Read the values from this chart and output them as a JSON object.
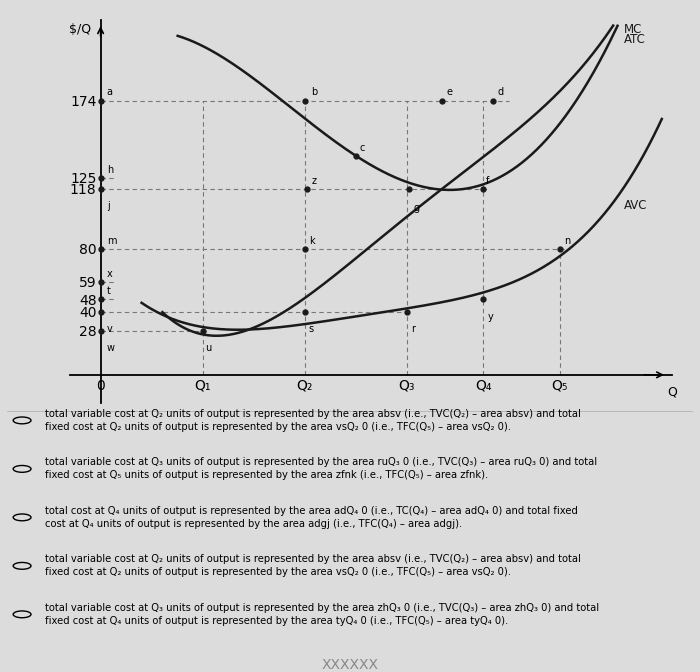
{
  "ylabel": "$/Q",
  "xlabel": "Q",
  "y_ticks": [
    28,
    40,
    48,
    59,
    80,
    118,
    125,
    174
  ],
  "y_labels": [
    "28",
    "40",
    "48",
    "59",
    "80",
    "118",
    "125",
    "174"
  ],
  "x_tick_labels": [
    "0",
    "Q₁",
    "Q₂",
    "Q₃",
    "Q₄",
    "Q₅"
  ],
  "curve_color": "#1a1a1a",
  "dashed_color": "#777777",
  "point_color": "#1a1a1a",
  "label_MC": "MC",
  "label_ATC": "ATC",
  "label_AVC": "AVC",
  "background_color": "#dcdcdc",
  "options": [
    [
      "total variable cost at Q₂ units of output is represented by the area absv (i.e., TVC(Q₂) – area absv) and total",
      "fixed cost at Q₂ units of output is represented by the area vsQ₂ 0 (i.e., TFC(Q₅) – area vsQ₂ 0)."
    ],
    [
      "total variable cost at Q₃ units of output is represented by the area ruQ₃ 0 (i.e., TVC(Q₃) – area ruQ₃ 0) and total",
      "fixed cost at Q₅ units of output is represented by the area zfnk (i.e., TFC(Q₅) – area zfnk)."
    ],
    [
      "total cost at Q₄ units of output is represented by the area adQ₄ 0 (i.e., TC(Q₄) – area adQ₄ 0) and total fixed",
      "cost at Q₄ units of output is represented by the area adgj (i.e., TFC(Q₄) – area adgj)."
    ],
    [
      "total variable cost at Q₂ units of output is represented by the area absv (i.e., TVC(Q₂) – area absv) and total",
      "fixed cost at Q₂ units of output is represented by the area vsQ₂ 0 (i.e., TFC(Q₅) – area vsQ₂ 0)."
    ],
    [
      "total variable cost at Q₃ units of output is represented by the area zhQ₃ 0 (i.e., TVC(Q₃) – area zhQ₃ 0) and total",
      "fixed cost at Q₄ units of output is represented by the area tyQ₄ 0 (i.e., TFC(Q₅) – area tyQ₄ 0)."
    ]
  ],
  "xQ1": 2.0,
  "xQ2": 4.0,
  "xQ3": 6.0,
  "xQ4": 7.5,
  "xQ5": 9.0,
  "xlim": [
    -0.6,
    11.2
  ],
  "ylim": [
    -18,
    225
  ]
}
